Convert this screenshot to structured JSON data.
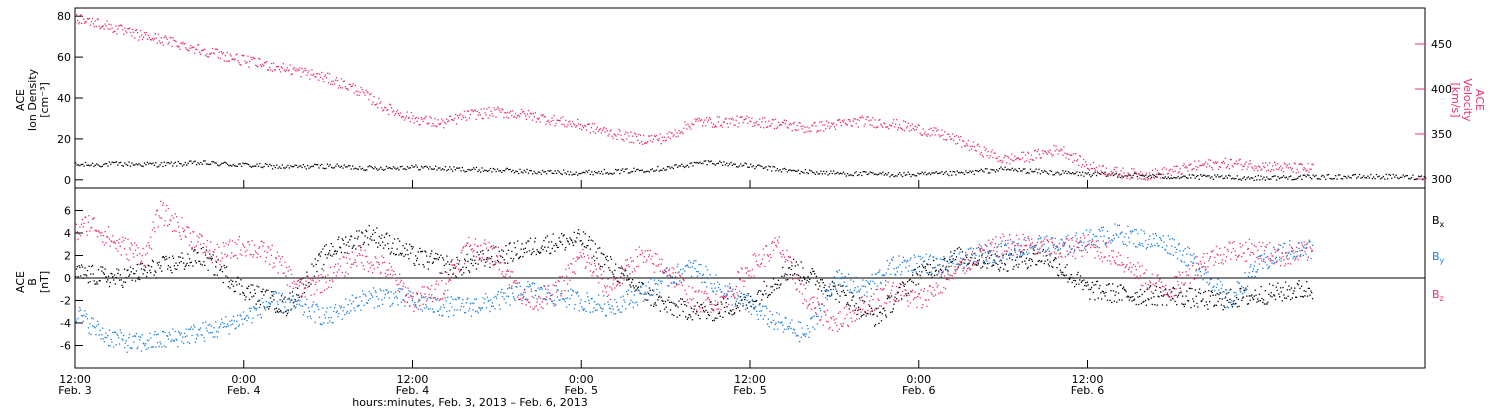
{
  "chart_data": [
    {
      "type": "scatter",
      "panel": "top",
      "ylabel_left": [
        "ACE",
        "Ion Density",
        "[cm⁻³]"
      ],
      "ylabel_right": [
        "ACE",
        "Velocity",
        "[km/s]"
      ],
      "y_left_range": [
        -4,
        84
      ],
      "y_left_ticks": [
        0,
        20,
        40,
        60,
        80
      ],
      "y_right_range": [
        290,
        490
      ],
      "y_right_ticks": [
        300,
        350,
        400,
        450
      ],
      "series": [
        {
          "name": "",
          "axis": "left",
          "color": "#000000",
          "points": [
            [
              0,
              7.5
            ],
            [
              3,
              8
            ],
            [
              6,
              7.8
            ],
            [
              9,
              8.5
            ],
            [
              12,
              7.5
            ],
            [
              15,
              6.5
            ],
            [
              18,
              7
            ],
            [
              21,
              6
            ],
            [
              24,
              6.5
            ],
            [
              27,
              5.5
            ],
            [
              30,
              5
            ],
            [
              33,
              4
            ],
            [
              36,
              3.8
            ],
            [
              39,
              4.5
            ],
            [
              42,
              6
            ],
            [
              45,
              9
            ],
            [
              48,
              7
            ],
            [
              51,
              4.5
            ],
            [
              54,
              3.5
            ],
            [
              57,
              3
            ],
            [
              60,
              2.8
            ],
            [
              63,
              3.5
            ],
            [
              66,
              5.5
            ],
            [
              69,
              4
            ],
            [
              72,
              3
            ],
            [
              75,
              2.5
            ],
            [
              78,
              1.8
            ],
            [
              81,
              1.5
            ],
            [
              84,
              1.2
            ],
            [
              87,
              1.5
            ],
            [
              90,
              1.8
            ],
            [
              93,
              1.8
            ],
            [
              96,
              1.5
            ]
          ]
        },
        {
          "name": "",
          "axis": "right",
          "color": "#e8336a",
          "points": [
            [
              0,
              480
            ],
            [
              2,
              472
            ],
            [
              4,
              462
            ],
            [
              6,
              456
            ],
            [
              8,
              448
            ],
            [
              10,
              440
            ],
            [
              12,
              432
            ],
            [
              14,
              426
            ],
            [
              16,
              420
            ],
            [
              18,
              412
            ],
            [
              20,
              400
            ],
            [
              22,
              380
            ],
            [
              24,
              368
            ],
            [
              26,
              362
            ],
            [
              28,
              372
            ],
            [
              30,
              375
            ],
            [
              32,
              372
            ],
            [
              34,
              366
            ],
            [
              36,
              360
            ],
            [
              38,
              352
            ],
            [
              40,
              345
            ],
            [
              42,
              346
            ],
            [
              44,
              364
            ],
            [
              46,
              364
            ],
            [
              48,
              365
            ],
            [
              50,
              362
            ],
            [
              52,
              357
            ],
            [
              54,
              361
            ],
            [
              56,
              365
            ],
            [
              58,
              362
            ],
            [
              60,
              356
            ],
            [
              62,
              348
            ],
            [
              64,
              335
            ],
            [
              66,
              322
            ],
            [
              68,
              326
            ],
            [
              70,
              334
            ],
            [
              72,
              315
            ],
            [
              74,
              308
            ],
            [
              76,
              305
            ],
            [
              78,
              309
            ],
            [
              80,
              316
            ],
            [
              82,
              318
            ],
            [
              84,
              316
            ],
            [
              86,
              313
            ],
            [
              88,
              312
            ]
          ]
        }
      ]
    },
    {
      "type": "scatter",
      "panel": "bottom",
      "ylabel": [
        "ACE",
        "B",
        "[nT]"
      ],
      "y_range": [
        -8,
        8
      ],
      "y_ticks": [
        -6,
        -4,
        -2,
        0,
        2,
        4,
        6
      ],
      "legend": [
        "Bx",
        "By",
        "Bz"
      ],
      "series": [
        {
          "name": "Bx",
          "color": "#000000",
          "points": [
            [
              0,
              0.5
            ],
            [
              3,
              0
            ],
            [
              6,
              1
            ],
            [
              9,
              2
            ],
            [
              12,
              -1
            ],
            [
              15,
              -2.5
            ],
            [
              18,
              2.5
            ],
            [
              21,
              4
            ],
            [
              24,
              2
            ],
            [
              27,
              1
            ],
            [
              30,
              2
            ],
            [
              33,
              3
            ],
            [
              36,
              3.5
            ],
            [
              39,
              0
            ],
            [
              42,
              -2.5
            ],
            [
              45,
              -3
            ],
            [
              48,
              -2
            ],
            [
              51,
              1
            ],
            [
              54,
              -1
            ],
            [
              57,
              -3.5
            ],
            [
              60,
              0.5
            ],
            [
              63,
              2
            ],
            [
              66,
              1.5
            ],
            [
              69,
              2
            ],
            [
              72,
              -1
            ],
            [
              75,
              -1.5
            ],
            [
              78,
              -1.5
            ],
            [
              81,
              -2
            ],
            [
              84,
              -1.5
            ],
            [
              87,
              -1
            ],
            [
              88,
              -1
            ]
          ]
        },
        {
          "name": "By",
          "color": "#1a7fdd",
          "points": [
            [
              0,
              -3
            ],
            [
              2,
              -5
            ],
            [
              4,
              -5.8
            ],
            [
              6,
              -5.5
            ],
            [
              8,
              -5
            ],
            [
              10,
              -4.5
            ],
            [
              12,
              -3.5
            ],
            [
              14,
              -2
            ],
            [
              16,
              -2.5
            ],
            [
              18,
              -3.5
            ],
            [
              20,
              -2
            ],
            [
              22,
              -1.5
            ],
            [
              24,
              -2
            ],
            [
              26,
              -2.5
            ],
            [
              28,
              -2.5
            ],
            [
              30,
              -2
            ],
            [
              32,
              -1
            ],
            [
              34,
              -1.5
            ],
            [
              36,
              -2
            ],
            [
              38,
              -2.5
            ],
            [
              40,
              -1.5
            ],
            [
              42,
              0
            ],
            [
              44,
              1
            ],
            [
              46,
              -1
            ],
            [
              48,
              -2.5
            ],
            [
              50,
              -4
            ],
            [
              52,
              -5
            ],
            [
              54,
              0
            ],
            [
              56,
              -1
            ],
            [
              58,
              1
            ],
            [
              60,
              1.5
            ],
            [
              62,
              1
            ],
            [
              64,
              2
            ],
            [
              66,
              2.5
            ],
            [
              68,
              3
            ],
            [
              70,
              2.8
            ],
            [
              72,
              3.5
            ],
            [
              74,
              4
            ],
            [
              76,
              3.5
            ],
            [
              78,
              3
            ],
            [
              80,
              1
            ],
            [
              82,
              -2
            ],
            [
              84,
              1
            ],
            [
              86,
              2.5
            ],
            [
              88,
              2.5
            ]
          ]
        },
        {
          "name": "Bz",
          "color": "#e8336a",
          "points": [
            [
              0,
              4
            ],
            [
              1,
              5
            ],
            [
              3,
              3
            ],
            [
              5,
              2
            ],
            [
              6,
              6
            ],
            [
              7,
              5
            ],
            [
              8,
              4
            ],
            [
              10,
              2
            ],
            [
              12,
              3
            ],
            [
              14,
              2
            ],
            [
              16,
              -1
            ],
            [
              18,
              0
            ],
            [
              20,
              2
            ],
            [
              22,
              1
            ],
            [
              24,
              -2
            ],
            [
              26,
              -1
            ],
            [
              28,
              3
            ],
            [
              30,
              2
            ],
            [
              32,
              -2
            ],
            [
              34,
              -1.5
            ],
            [
              36,
              2
            ],
            [
              38,
              -1
            ],
            [
              40,
              2
            ],
            [
              42,
              1
            ],
            [
              44,
              -2
            ],
            [
              46,
              -2
            ],
            [
              48,
              1
            ],
            [
              50,
              3
            ],
            [
              52,
              -2
            ],
            [
              54,
              -4
            ],
            [
              56,
              -2.5
            ],
            [
              58,
              -1
            ],
            [
              60,
              -2
            ],
            [
              62,
              0
            ],
            [
              64,
              2
            ],
            [
              66,
              3
            ],
            [
              68,
              3
            ],
            [
              70,
              2.5
            ],
            [
              72,
              3
            ],
            [
              74,
              2
            ],
            [
              76,
              0
            ],
            [
              78,
              -1
            ],
            [
              80,
              1.5
            ],
            [
              82,
              2.5
            ],
            [
              84,
              2.5
            ],
            [
              86,
              2
            ],
            [
              88,
              2.5
            ]
          ]
        }
      ]
    }
  ],
  "x_axis": {
    "range": [
      0,
      96
    ],
    "major_ticks": [
      {
        "h": 0,
        "time": "12:00",
        "date": "Feb. 3"
      },
      {
        "h": 12,
        "time": "0:00",
        "date": "Feb. 4"
      },
      {
        "h": 24,
        "time": "12:00",
        "date": "Feb. 4"
      },
      {
        "h": 36,
        "time": "0:00",
        "date": "Feb. 5"
      },
      {
        "h": 48,
        "time": "12:00",
        "date": "Feb. 5"
      },
      {
        "h": 60,
        "time": "0:00",
        "date": "Feb. 6"
      },
      {
        "h": 72,
        "time": "12:00",
        "date": "Feb. 6"
      }
    ],
    "title": "hours:minutes, Feb.  3, 2013 – Feb.  6, 2013"
  },
  "legend_labels": {
    "bx": {
      "main": "B",
      "sub": "x"
    },
    "by": {
      "main": "B",
      "sub": "y"
    },
    "bz": {
      "main": "B",
      "sub": "z"
    }
  }
}
